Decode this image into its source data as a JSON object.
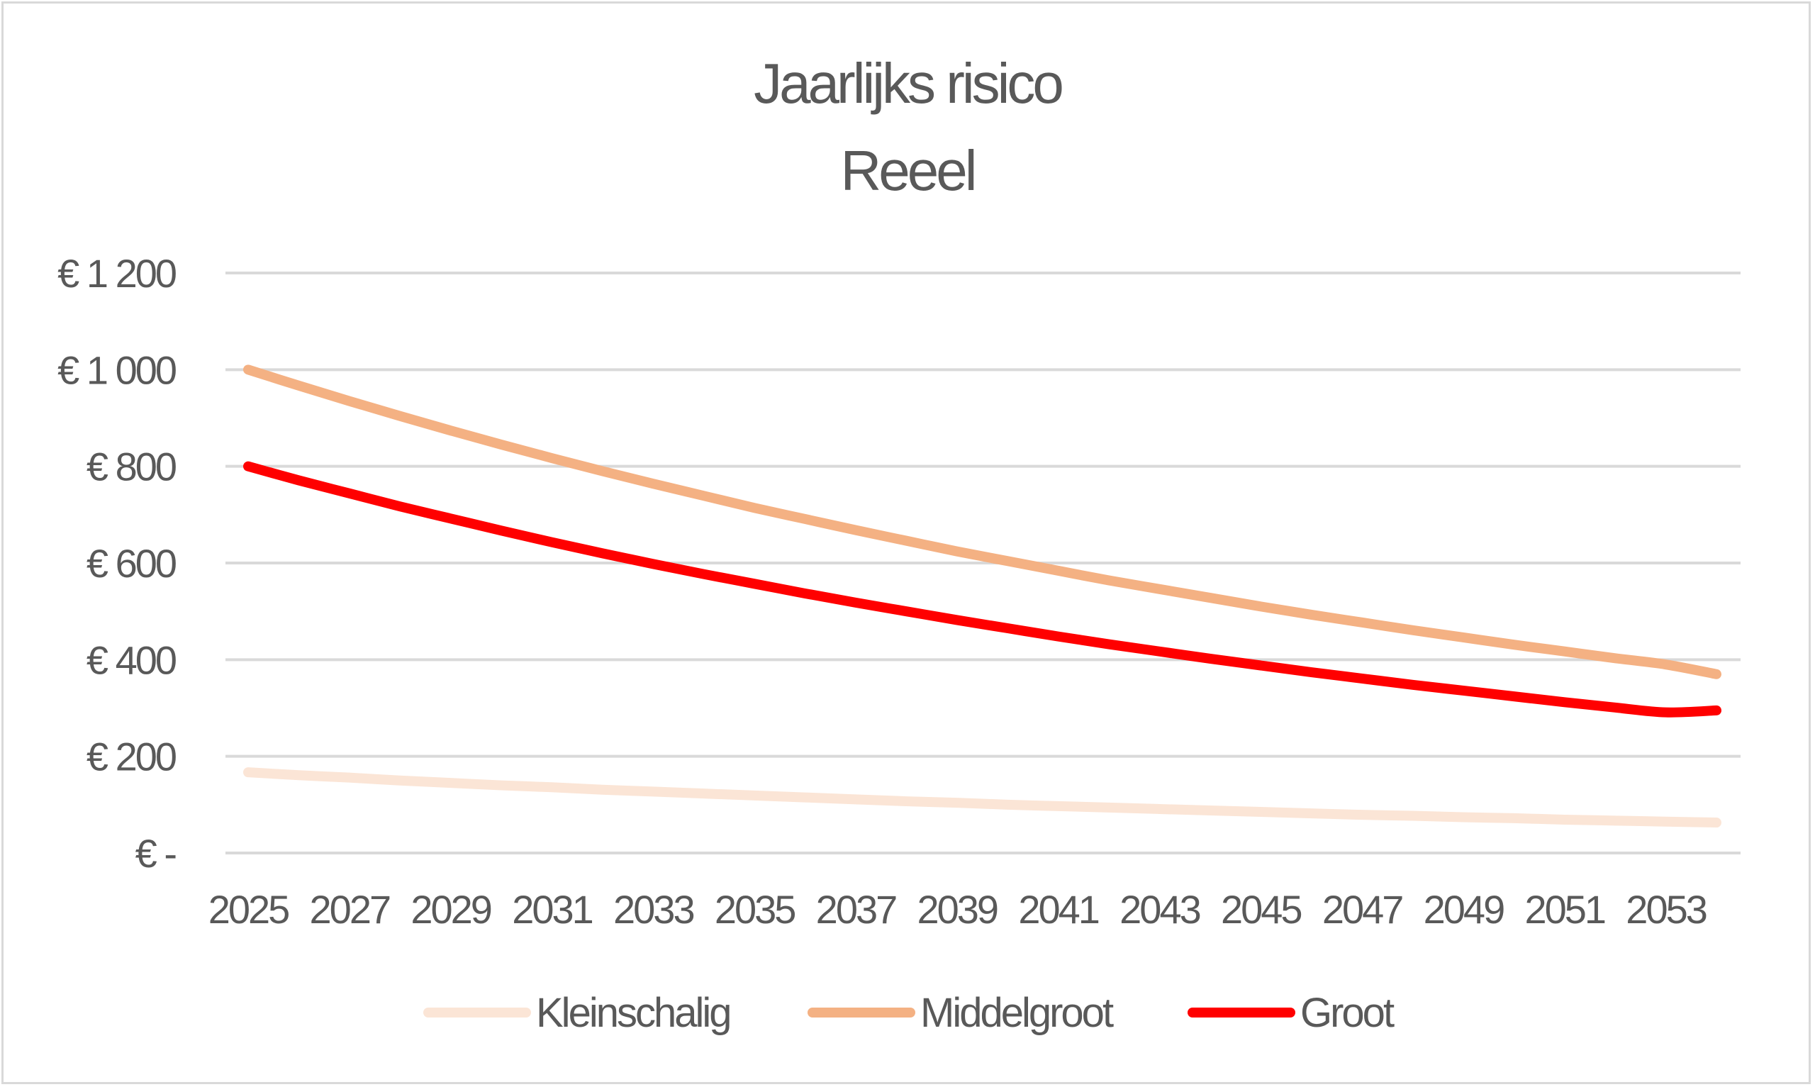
{
  "chart_data": {
    "type": "line",
    "title": "Jaarlijks risico",
    "subtitle": "Reeel",
    "xlabel": "",
    "ylabel": "",
    "ylim": [
      0,
      1200
    ],
    "yticks": [
      {
        "value": 1200,
        "label": "€ 1 200"
      },
      {
        "value": 1000,
        "label": "€ 1 000"
      },
      {
        "value": 800,
        "label": "€ 800"
      },
      {
        "value": 600,
        "label": "€ 600"
      },
      {
        "value": 400,
        "label": "€ 400"
      },
      {
        "value": 200,
        "label": "€ 200"
      },
      {
        "value": 0,
        "label": "€ -"
      }
    ],
    "x": [
      2025,
      2026,
      2027,
      2028,
      2029,
      2030,
      2031,
      2032,
      2033,
      2034,
      2035,
      2036,
      2037,
      2038,
      2039,
      2040,
      2041,
      2042,
      2043,
      2044,
      2045,
      2046,
      2047,
      2048,
      2049,
      2050,
      2051,
      2052,
      2053,
      2054
    ],
    "xtick_labels": [
      "2025",
      "2027",
      "2029",
      "2031",
      "2033",
      "2035",
      "2037",
      "2039",
      "2041",
      "2043",
      "2045",
      "2047",
      "2049",
      "2051",
      "2053"
    ],
    "grid": true,
    "legend": "bottom",
    "series": [
      {
        "name": "Kleinschalig",
        "color": "#fbe5d6",
        "values": [
          167,
          161,
          156,
          150,
          145,
          140,
          136,
          131,
          127,
          123,
          119,
          115,
          111,
          107,
          104,
          100,
          97,
          94,
          91,
          88,
          85,
          82,
          79,
          77,
          74,
          72,
          69,
          67,
          65,
          63
        ]
      },
      {
        "name": "Middelgroot",
        "color": "#f4b183",
        "values": [
          1000,
          967,
          935,
          904,
          874,
          845,
          817,
          790,
          764,
          739,
          714,
          691,
          668,
          646,
          624,
          604,
          584,
          564,
          546,
          528,
          510,
          493,
          477,
          461,
          446,
          431,
          417,
          403,
          390,
          370
        ]
      },
      {
        "name": "Groot",
        "color": "#ff0000",
        "values": [
          800,
          771,
          744,
          717,
          692,
          667,
          643,
          620,
          598,
          577,
          557,
          537,
          518,
          500,
          482,
          465,
          448,
          432,
          417,
          402,
          388,
          374,
          361,
          348,
          336,
          324,
          312,
          301,
          291,
          295
        ]
      }
    ]
  }
}
